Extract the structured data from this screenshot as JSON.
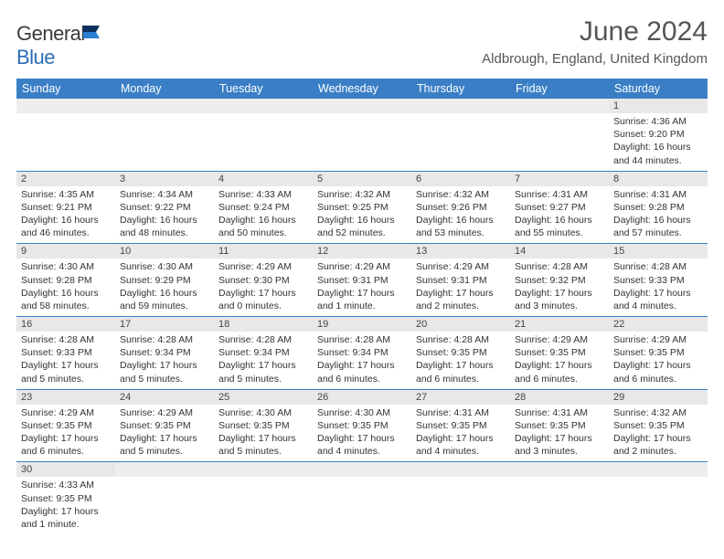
{
  "brand": {
    "name_a": "General",
    "name_b": "Blue"
  },
  "title": "June 2024",
  "location": "Aldbrough, England, United Kingdom",
  "colors": {
    "header_bg": "#3a7fc5",
    "bar_bg": "#e8e8e8",
    "text": "#333333",
    "title": "#555555"
  },
  "day_headers": [
    "Sunday",
    "Monday",
    "Tuesday",
    "Wednesday",
    "Thursday",
    "Friday",
    "Saturday"
  ],
  "weeks": [
    [
      null,
      null,
      null,
      null,
      null,
      null,
      {
        "n": "1",
        "sr": "Sunrise: 4:36 AM",
        "ss": "Sunset: 9:20 PM",
        "dl": "Daylight: 16 hours and 44 minutes."
      }
    ],
    [
      {
        "n": "2",
        "sr": "Sunrise: 4:35 AM",
        "ss": "Sunset: 9:21 PM",
        "dl": "Daylight: 16 hours and 46 minutes."
      },
      {
        "n": "3",
        "sr": "Sunrise: 4:34 AM",
        "ss": "Sunset: 9:22 PM",
        "dl": "Daylight: 16 hours and 48 minutes."
      },
      {
        "n": "4",
        "sr": "Sunrise: 4:33 AM",
        "ss": "Sunset: 9:24 PM",
        "dl": "Daylight: 16 hours and 50 minutes."
      },
      {
        "n": "5",
        "sr": "Sunrise: 4:32 AM",
        "ss": "Sunset: 9:25 PM",
        "dl": "Daylight: 16 hours and 52 minutes."
      },
      {
        "n": "6",
        "sr": "Sunrise: 4:32 AM",
        "ss": "Sunset: 9:26 PM",
        "dl": "Daylight: 16 hours and 53 minutes."
      },
      {
        "n": "7",
        "sr": "Sunrise: 4:31 AM",
        "ss": "Sunset: 9:27 PM",
        "dl": "Daylight: 16 hours and 55 minutes."
      },
      {
        "n": "8",
        "sr": "Sunrise: 4:31 AM",
        "ss": "Sunset: 9:28 PM",
        "dl": "Daylight: 16 hours and 57 minutes."
      }
    ],
    [
      {
        "n": "9",
        "sr": "Sunrise: 4:30 AM",
        "ss": "Sunset: 9:28 PM",
        "dl": "Daylight: 16 hours and 58 minutes."
      },
      {
        "n": "10",
        "sr": "Sunrise: 4:30 AM",
        "ss": "Sunset: 9:29 PM",
        "dl": "Daylight: 16 hours and 59 minutes."
      },
      {
        "n": "11",
        "sr": "Sunrise: 4:29 AM",
        "ss": "Sunset: 9:30 PM",
        "dl": "Daylight: 17 hours and 0 minutes."
      },
      {
        "n": "12",
        "sr": "Sunrise: 4:29 AM",
        "ss": "Sunset: 9:31 PM",
        "dl": "Daylight: 17 hours and 1 minute."
      },
      {
        "n": "13",
        "sr": "Sunrise: 4:29 AM",
        "ss": "Sunset: 9:31 PM",
        "dl": "Daylight: 17 hours and 2 minutes."
      },
      {
        "n": "14",
        "sr": "Sunrise: 4:28 AM",
        "ss": "Sunset: 9:32 PM",
        "dl": "Daylight: 17 hours and 3 minutes."
      },
      {
        "n": "15",
        "sr": "Sunrise: 4:28 AM",
        "ss": "Sunset: 9:33 PM",
        "dl": "Daylight: 17 hours and 4 minutes."
      }
    ],
    [
      {
        "n": "16",
        "sr": "Sunrise: 4:28 AM",
        "ss": "Sunset: 9:33 PM",
        "dl": "Daylight: 17 hours and 5 minutes."
      },
      {
        "n": "17",
        "sr": "Sunrise: 4:28 AM",
        "ss": "Sunset: 9:34 PM",
        "dl": "Daylight: 17 hours and 5 minutes."
      },
      {
        "n": "18",
        "sr": "Sunrise: 4:28 AM",
        "ss": "Sunset: 9:34 PM",
        "dl": "Daylight: 17 hours and 5 minutes."
      },
      {
        "n": "19",
        "sr": "Sunrise: 4:28 AM",
        "ss": "Sunset: 9:34 PM",
        "dl": "Daylight: 17 hours and 6 minutes."
      },
      {
        "n": "20",
        "sr": "Sunrise: 4:28 AM",
        "ss": "Sunset: 9:35 PM",
        "dl": "Daylight: 17 hours and 6 minutes."
      },
      {
        "n": "21",
        "sr": "Sunrise: 4:29 AM",
        "ss": "Sunset: 9:35 PM",
        "dl": "Daylight: 17 hours and 6 minutes."
      },
      {
        "n": "22",
        "sr": "Sunrise: 4:29 AM",
        "ss": "Sunset: 9:35 PM",
        "dl": "Daylight: 17 hours and 6 minutes."
      }
    ],
    [
      {
        "n": "23",
        "sr": "Sunrise: 4:29 AM",
        "ss": "Sunset: 9:35 PM",
        "dl": "Daylight: 17 hours and 6 minutes."
      },
      {
        "n": "24",
        "sr": "Sunrise: 4:29 AM",
        "ss": "Sunset: 9:35 PM",
        "dl": "Daylight: 17 hours and 5 minutes."
      },
      {
        "n": "25",
        "sr": "Sunrise: 4:30 AM",
        "ss": "Sunset: 9:35 PM",
        "dl": "Daylight: 17 hours and 5 minutes."
      },
      {
        "n": "26",
        "sr": "Sunrise: 4:30 AM",
        "ss": "Sunset: 9:35 PM",
        "dl": "Daylight: 17 hours and 4 minutes."
      },
      {
        "n": "27",
        "sr": "Sunrise: 4:31 AM",
        "ss": "Sunset: 9:35 PM",
        "dl": "Daylight: 17 hours and 4 minutes."
      },
      {
        "n": "28",
        "sr": "Sunrise: 4:31 AM",
        "ss": "Sunset: 9:35 PM",
        "dl": "Daylight: 17 hours and 3 minutes."
      },
      {
        "n": "29",
        "sr": "Sunrise: 4:32 AM",
        "ss": "Sunset: 9:35 PM",
        "dl": "Daylight: 17 hours and 2 minutes."
      }
    ],
    [
      {
        "n": "30",
        "sr": "Sunrise: 4:33 AM",
        "ss": "Sunset: 9:35 PM",
        "dl": "Daylight: 17 hours and 1 minute."
      },
      null,
      null,
      null,
      null,
      null,
      null
    ]
  ]
}
